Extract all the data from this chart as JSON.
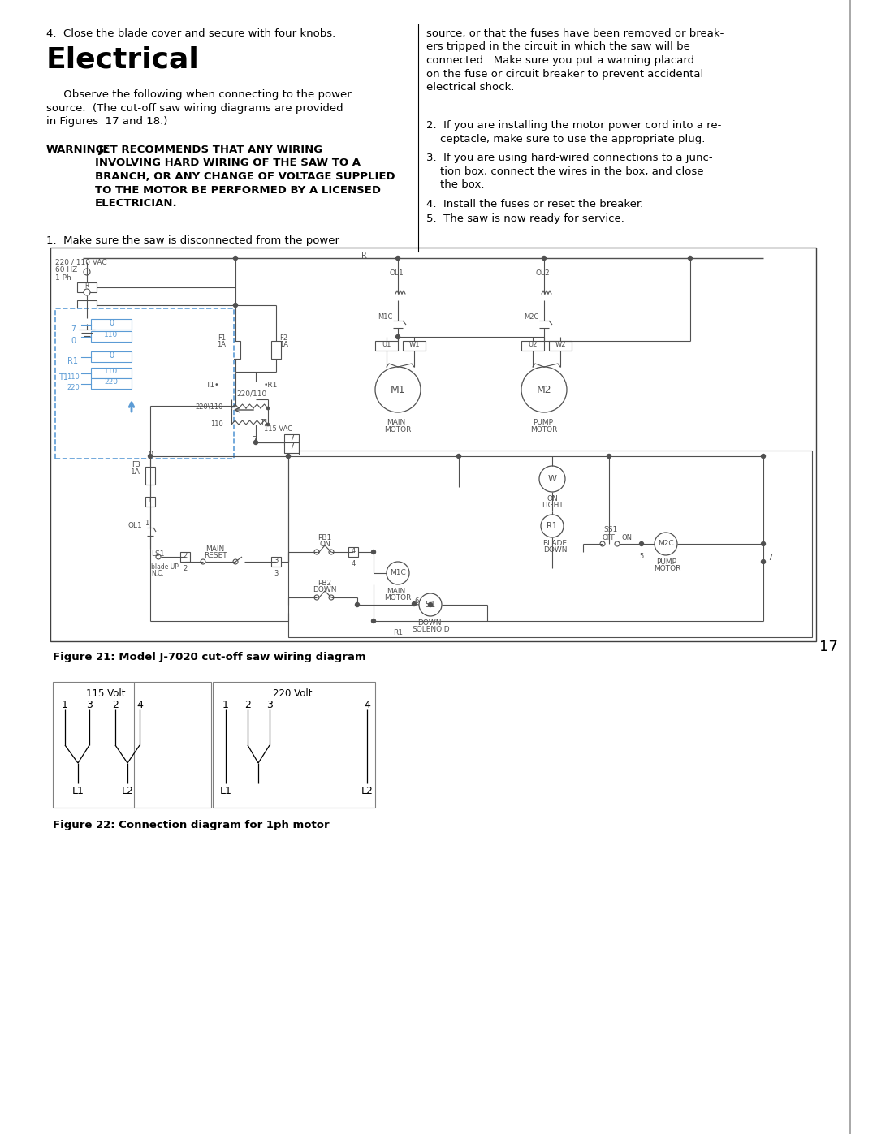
{
  "page_bg": "#ffffff",
  "text_color": "#000000",
  "lc": "#505050",
  "blue_color": "#5b9bd5",
  "heading4": "4.  Close the blade cover and secure with four knobs.",
  "title_text": "Electrical",
  "para1": "     Observe the following when connecting to the power\nsource.  (The cut-off saw wiring diagrams are provided\nin Figures  17 and 18.)",
  "warning_bold": "WARNING:",
  "warning_rest": " JET RECOMMENDS THAT ANY WIRING\nINVOLVING HARD WIRING OF THE SAW TO A\nBRANCH, OR ANY CHANGE OF VOLTAGE SUPPLIED\nTO THE MOTOR BE PERFORMED BY A LICENSED\nELECTRICIAN.",
  "right_para1": "source, or that the fuses have been removed or break-\ners tripped in the circuit in which the saw will be\nconnected.  Make sure you put a warning placard\non the fuse or circuit breaker to prevent accidental\nelectrical shock.",
  "item1_left": "1.  Make sure the saw is disconnected from the power",
  "item2": "2.  If you are installing the motor power cord into a re-\n    ceptacle, make sure to use the appropriate plug.",
  "item3": "3.  If you are using hard-wired connections to a junc-\n    tion box, connect the wires in the box, and close\n    the box.",
  "item4": "4.  Install the fuses or reset the breaker.",
  "item5": "5.  The saw is now ready for service.",
  "fig21_caption": "Figure 21: Model J-7020 cut-off saw wiring diagram",
  "fig22_caption": "Figure 22: Connection diagram for 1ph motor",
  "page_number": "17"
}
